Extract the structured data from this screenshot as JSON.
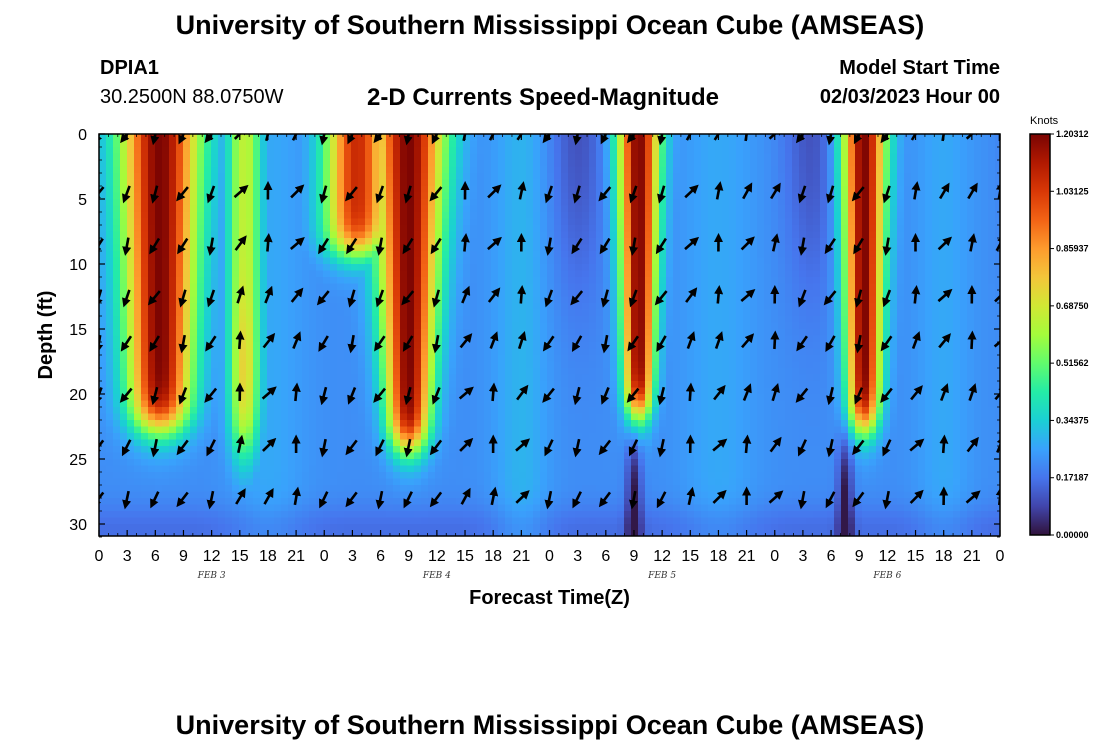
{
  "header": {
    "title": "University of Southern Mississippi Ocean Cube (AMSEAS)",
    "station": "DPIA1",
    "coords": "30.2500N  88.0750W",
    "model_start_label": "Model Start Time",
    "model_start_value": "02/03/2023 Hour 00"
  },
  "footer": {
    "title": "University of Southern Mississippi Ocean Cube (AMSEAS)"
  },
  "chart_data": {
    "type": "heatmap",
    "title": "2-D Currents Speed-Magnitude",
    "xlabel": "Forecast Time(Z)",
    "ylabel": "Depth (ft)",
    "x_range_hours": [
      0,
      96
    ],
    "y_range_ft": [
      0,
      31
    ],
    "y_ticks": [
      0,
      5,
      10,
      15,
      20,
      25,
      30
    ],
    "x_tick_hours": [
      0,
      3,
      6,
      9,
      12,
      15,
      18,
      21,
      24,
      27,
      30,
      33,
      36,
      39,
      42,
      45,
      48,
      51,
      54,
      57,
      60,
      63,
      66,
      69,
      72,
      75,
      78,
      81,
      84,
      87,
      90,
      93,
      96
    ],
    "x_tick_labels": [
      "0",
      "3",
      "6",
      "9",
      "12",
      "15",
      "18",
      "21",
      "0",
      "3",
      "6",
      "9",
      "12",
      "15",
      "18",
      "21",
      "0",
      "3",
      "6",
      "9",
      "12",
      "15",
      "18",
      "21",
      "0",
      "3",
      "6",
      "9",
      "12",
      "15",
      "18",
      "21",
      "0"
    ],
    "day_labels": [
      {
        "hour": 12,
        "label": "FEB 3"
      },
      {
        "hour": 36,
        "label": "FEB 4"
      },
      {
        "hour": 60,
        "label": "FEB 5"
      },
      {
        "hour": 84,
        "label": "FEB 6"
      }
    ],
    "colorbar": {
      "unit": "Knots",
      "min": 0.0,
      "max": 1.20312,
      "tick_values": [
        1.20312,
        1.03125,
        0.85937,
        0.6875,
        0.51562,
        0.34375,
        0.17187,
        0.0
      ],
      "tick_labels": [
        "1.20312",
        "1.03125",
        "0.85937",
        "0.68750",
        "0.51562",
        "0.34375",
        "0.17187",
        "0.00000"
      ],
      "colors": [
        "#30123b",
        "#4145ab",
        "#4675ed",
        "#39a2fc",
        "#1bcfd4",
        "#24eca6",
        "#61fc6c",
        "#a4fc3b",
        "#d1e834",
        "#f3c63a",
        "#fe9b2d",
        "#f36315",
        "#d93806",
        "#b11901",
        "#7a0402"
      ]
    },
    "vector_depths_ft": [
      0,
      4.5,
      8.5,
      12.5,
      16,
      20,
      24,
      28
    ],
    "vector_times_hours": [
      0,
      3,
      6,
      9,
      12,
      15,
      18,
      21,
      24,
      27,
      30,
      33,
      36,
      39,
      42,
      45,
      48,
      51,
      54,
      57,
      60,
      63,
      66,
      69,
      72,
      75,
      78,
      81,
      84,
      87,
      90,
      93,
      96
    ]
  }
}
